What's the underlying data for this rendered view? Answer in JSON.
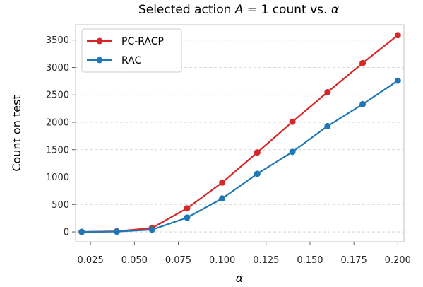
{
  "chart_data": {
    "type": "line",
    "title": "Selected action A = 1 count vs. α",
    "title_prefix": "Selected action ",
    "title_math": "A",
    "title_suffix": " = 1 count vs. ",
    "title_alpha": "α",
    "xlabel": "α",
    "ylabel": "Count on test",
    "x": [
      0.02,
      0.04,
      0.06,
      0.08,
      0.1,
      0.12,
      0.14,
      0.16,
      0.18,
      0.2
    ],
    "xlim": [
      0.0165,
      0.2035
    ],
    "ylim": [
      -180,
      3780
    ],
    "xticks": [
      0.025,
      0.05,
      0.075,
      0.1,
      0.125,
      0.15,
      0.175,
      0.2
    ],
    "xtick_labels": [
      "0.025",
      "0.050",
      "0.075",
      "0.100",
      "0.125",
      "0.150",
      "0.175",
      "0.200"
    ],
    "yticks": [
      0,
      500,
      1000,
      1500,
      2000,
      2500,
      3000,
      3500
    ],
    "ytick_labels": [
      "0",
      "500",
      "1000",
      "1500",
      "2000",
      "2500",
      "3000",
      "3500"
    ],
    "grid": "horizontal dashed",
    "legend_position": "top-left",
    "series": [
      {
        "name": "PC-RACP",
        "color": "#d62728",
        "values": [
          0,
          10,
          70,
          430,
          900,
          1450,
          2010,
          2550,
          3080,
          3590
        ]
      },
      {
        "name": "RAC",
        "color": "#1f77b4",
        "values": [
          0,
          5,
          40,
          260,
          610,
          1060,
          1460,
          1930,
          2330,
          2760
        ]
      }
    ]
  }
}
